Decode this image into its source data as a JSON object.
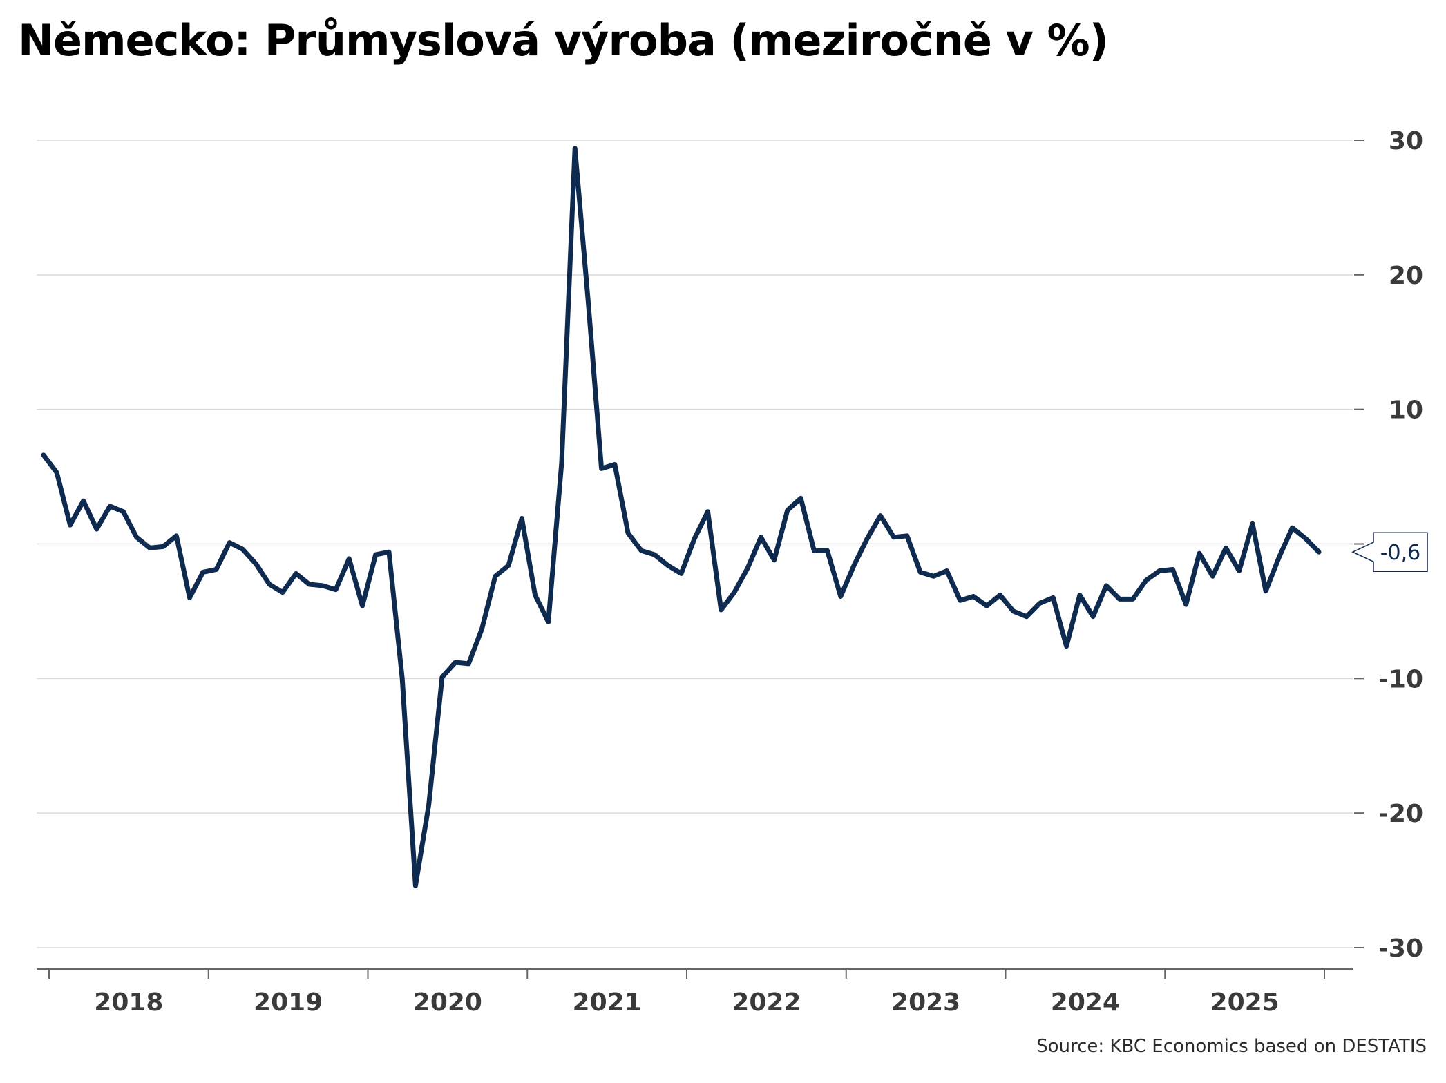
{
  "chart_data": {
    "type": "line",
    "title": "Německo: Průmyslová výroba (meziročně v %)",
    "source": "Source: KBC Economics based on DESTATIS",
    "y_axis": {
      "position": "right",
      "ylim": [
        -30,
        30
      ],
      "ticks": [
        30,
        20,
        10,
        -10,
        -20,
        -30
      ],
      "tick_labels": [
        "30",
        "20",
        "10",
        "-10",
        "-20",
        "-30"
      ]
    },
    "x_axis": {
      "year_labels": [
        "2018",
        "2019",
        "2020",
        "2021",
        "2022",
        "2023",
        "2024",
        "2025"
      ],
      "start": "2017-12",
      "end": "2025-10",
      "frequency": "monthly"
    },
    "grid": true,
    "colors": {
      "line": "#0e2a4e",
      "grid": "#d9d9d9",
      "axis": "#666666"
    },
    "last_value_label": "-0,6",
    "series": [
      {
        "values": [
          6.6,
          5.3,
          1.4,
          3.2,
          1.1,
          2.8,
          2.4,
          0.5,
          -0.3,
          -0.2,
          0.6,
          -4.0,
          -2.1,
          -1.9,
          0.1,
          -0.4,
          -1.5,
          -3.0,
          -3.6,
          -2.2,
          -3.0,
          -3.1,
          -3.4,
          -1.1,
          -4.6,
          -0.8,
          -0.6,
          -10.0,
          -25.4,
          -19.4,
          -9.9,
          -8.8,
          -8.9,
          -6.3,
          -2.4,
          -1.6,
          1.9,
          -3.8,
          -5.8,
          6.0,
          29.4,
          18.0,
          5.6,
          5.9,
          0.8,
          -0.5,
          -0.8,
          -1.6,
          -2.2,
          0.4,
          2.4,
          -4.9,
          -3.6,
          -1.8,
          0.5,
          -1.2,
          2.5,
          3.4,
          -0.5,
          -0.5,
          -3.9,
          -1.6,
          0.4,
          2.1,
          0.5,
          0.6,
          -2.1,
          -2.4,
          -2.0,
          -4.2,
          -3.9,
          -4.6,
          -3.8,
          -5.0,
          -5.4,
          -4.4,
          -4.0,
          -7.6,
          -3.8,
          -5.4,
          -3.1,
          -4.1,
          -4.1,
          -2.7,
          -2.0,
          -1.9,
          -4.5,
          -0.7,
          -2.4,
          -0.3,
          -2.0,
          1.5,
          -3.5,
          -1.0,
          1.2,
          0.4,
          -0.6
        ]
      }
    ]
  }
}
